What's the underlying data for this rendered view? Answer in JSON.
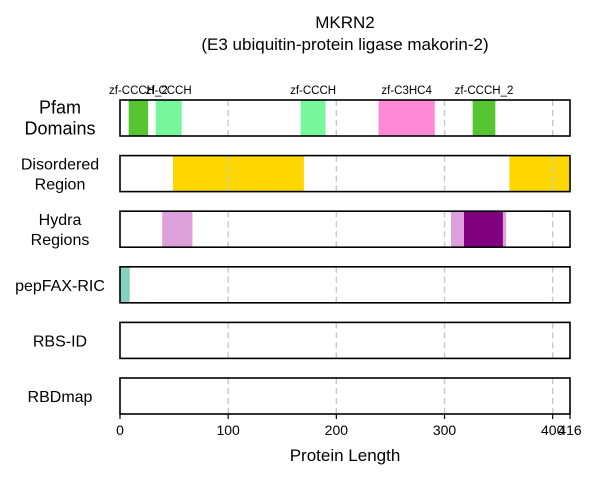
{
  "chart_data": {
    "type": "domain-track",
    "title": "MKRN2",
    "subtitle": "(E3 ubiquitin-protein ligase makorin-2)",
    "xlabel": "Protein Length",
    "xlim": [
      0,
      416
    ],
    "xticks": [
      0,
      100,
      200,
      300,
      400,
      416
    ],
    "grid_lines": [
      100,
      200,
      300,
      400
    ],
    "tracks": [
      {
        "label_lines": [
          "Pfam",
          "Domains"
        ],
        "segments": [
          {
            "start": 8,
            "end": 26,
            "color": "#55c631",
            "label": "zf-CCCH_2"
          },
          {
            "start": 33,
            "end": 57,
            "color": "#77f79b",
            "label": "zf-CCCH"
          },
          {
            "start": 167,
            "end": 190,
            "color": "#77f79b",
            "label": "zf-CCCH"
          },
          {
            "start": 239,
            "end": 291,
            "color": "#ff88d7",
            "label": "zf-C3HC4"
          },
          {
            "start": 326,
            "end": 347,
            "color": "#55c631",
            "label": "zf-CCCH_2"
          }
        ]
      },
      {
        "label_lines": [
          "Disordered",
          "Region"
        ],
        "segments": [
          {
            "start": 49,
            "end": 170,
            "color": "#ffd700"
          },
          {
            "start": 360,
            "end": 416,
            "color": "#ffd700"
          }
        ]
      },
      {
        "label_lines": [
          "Hydra",
          "Regions"
        ],
        "segments": [
          {
            "start": 39,
            "end": 67,
            "color": "#dda0dd"
          },
          {
            "start": 306,
            "end": 318,
            "color": "#dda0dd"
          },
          {
            "start": 318,
            "end": 354,
            "color": "#800080"
          },
          {
            "start": 354,
            "end": 357,
            "color": "#dda0dd"
          }
        ]
      },
      {
        "label_lines": [
          "pepFAX-RIC"
        ],
        "segments": [
          {
            "start": 0,
            "end": 9,
            "color": "#88d1c0"
          }
        ]
      },
      {
        "label_lines": [
          "RBS-ID"
        ],
        "segments": []
      },
      {
        "label_lines": [
          "RBDmap"
        ],
        "segments": []
      }
    ]
  }
}
